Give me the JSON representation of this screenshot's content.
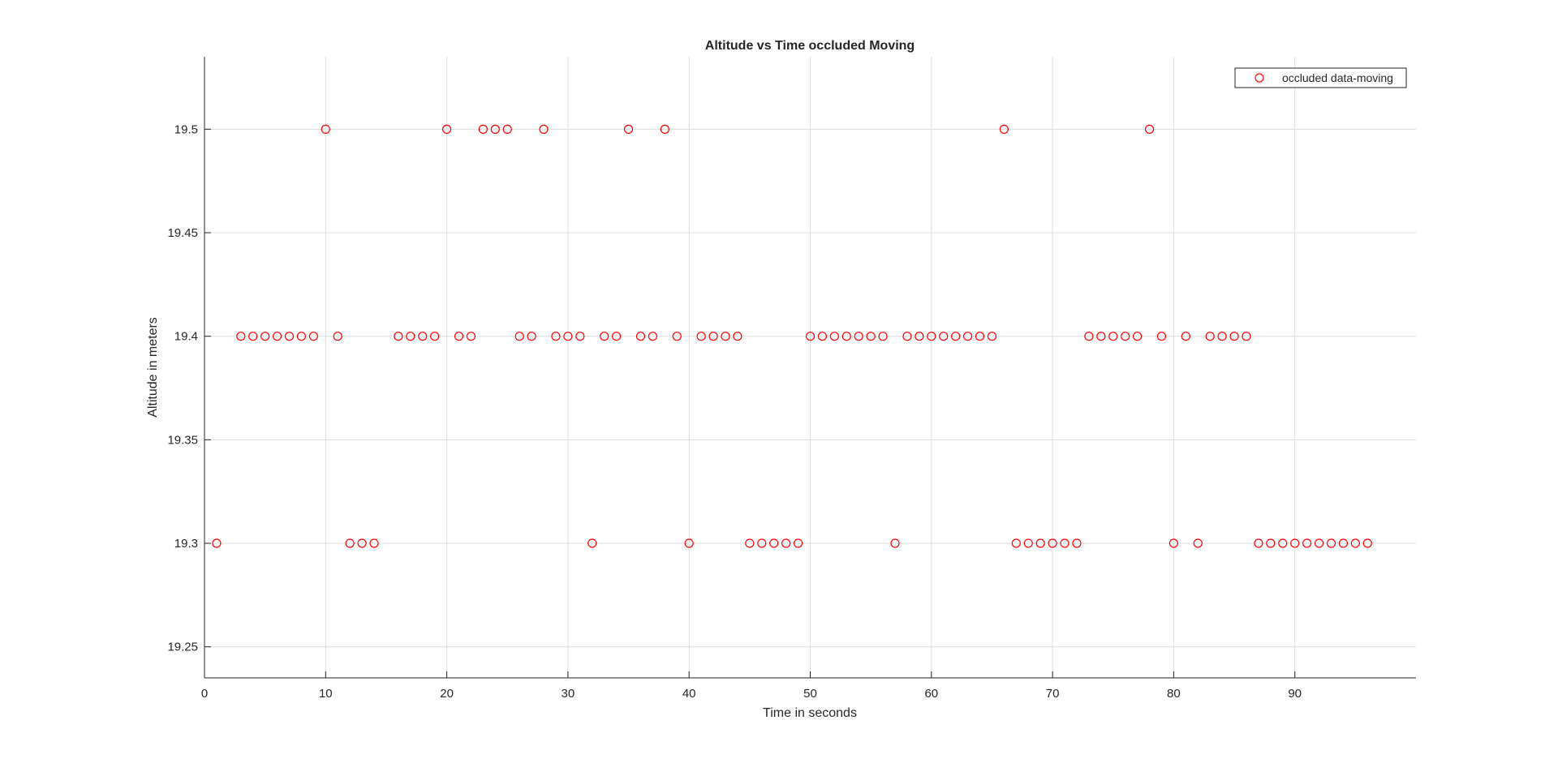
{
  "chart_data": {
    "type": "scatter",
    "title": "Altitude vs Time occluded Moving",
    "xlabel": "Time in seconds",
    "ylabel": "Altitude in meters",
    "xlim": [
      0,
      100
    ],
    "ylim": [
      19.235,
      19.535
    ],
    "x_ticks": [
      0,
      10,
      20,
      30,
      40,
      50,
      60,
      70,
      80,
      90
    ],
    "y_ticks": [
      19.25,
      19.3,
      19.35,
      19.4,
      19.45,
      19.5
    ],
    "x_tick_labels": [
      "0",
      "10",
      "20",
      "30",
      "40",
      "50",
      "60",
      "70",
      "80",
      "90"
    ],
    "y_tick_labels": [
      "19.25",
      "19.3",
      "19.35",
      "19.4",
      "19.45",
      "19.5"
    ],
    "grid": true,
    "legend_position": "top-right",
    "marker": "open-circle",
    "colors": {
      "marker": "#ff0000",
      "grid": "#dcdcdc",
      "axis": "#262626"
    },
    "series": [
      {
        "name": "occluded data-moving",
        "points": [
          [
            1,
            19.3
          ],
          [
            3,
            19.4
          ],
          [
            4,
            19.4
          ],
          [
            5,
            19.4
          ],
          [
            6,
            19.4
          ],
          [
            7,
            19.4
          ],
          [
            8,
            19.4
          ],
          [
            9,
            19.4
          ],
          [
            10,
            19.5
          ],
          [
            11,
            19.4
          ],
          [
            12,
            19.3
          ],
          [
            13,
            19.3
          ],
          [
            14,
            19.3
          ],
          [
            16,
            19.4
          ],
          [
            17,
            19.4
          ],
          [
            18,
            19.4
          ],
          [
            19,
            19.4
          ],
          [
            20,
            19.5
          ],
          [
            21,
            19.4
          ],
          [
            22,
            19.4
          ],
          [
            23,
            19.5
          ],
          [
            24,
            19.5
          ],
          [
            25,
            19.5
          ],
          [
            26,
            19.4
          ],
          [
            27,
            19.4
          ],
          [
            28,
            19.5
          ],
          [
            29,
            19.4
          ],
          [
            30,
            19.4
          ],
          [
            31,
            19.4
          ],
          [
            32,
            19.3
          ],
          [
            33,
            19.4
          ],
          [
            34,
            19.4
          ],
          [
            35,
            19.5
          ],
          [
            36,
            19.4
          ],
          [
            37,
            19.4
          ],
          [
            38,
            19.5
          ],
          [
            39,
            19.4
          ],
          [
            40,
            19.3
          ],
          [
            41,
            19.4
          ],
          [
            42,
            19.4
          ],
          [
            43,
            19.4
          ],
          [
            44,
            19.4
          ],
          [
            45,
            19.3
          ],
          [
            46,
            19.3
          ],
          [
            47,
            19.3
          ],
          [
            48,
            19.3
          ],
          [
            49,
            19.3
          ],
          [
            50,
            19.4
          ],
          [
            51,
            19.4
          ],
          [
            52,
            19.4
          ],
          [
            53,
            19.4
          ],
          [
            54,
            19.4
          ],
          [
            55,
            19.4
          ],
          [
            56,
            19.4
          ],
          [
            57,
            19.3
          ],
          [
            58,
            19.4
          ],
          [
            59,
            19.4
          ],
          [
            60,
            19.4
          ],
          [
            61,
            19.4
          ],
          [
            62,
            19.4
          ],
          [
            63,
            19.4
          ],
          [
            64,
            19.4
          ],
          [
            65,
            19.4
          ],
          [
            66,
            19.5
          ],
          [
            67,
            19.3
          ],
          [
            68,
            19.3
          ],
          [
            69,
            19.3
          ],
          [
            70,
            19.3
          ],
          [
            71,
            19.3
          ],
          [
            72,
            19.3
          ],
          [
            73,
            19.4
          ],
          [
            74,
            19.4
          ],
          [
            75,
            19.4
          ],
          [
            76,
            19.4
          ],
          [
            77,
            19.4
          ],
          [
            78,
            19.5
          ],
          [
            79,
            19.4
          ],
          [
            80,
            19.3
          ],
          [
            81,
            19.4
          ],
          [
            82,
            19.3
          ],
          [
            83,
            19.4
          ],
          [
            84,
            19.4
          ],
          [
            85,
            19.4
          ],
          [
            86,
            19.4
          ],
          [
            87,
            19.3
          ],
          [
            88,
            19.3
          ],
          [
            89,
            19.3
          ],
          [
            90,
            19.3
          ],
          [
            91,
            19.3
          ],
          [
            92,
            19.3
          ],
          [
            93,
            19.3
          ],
          [
            94,
            19.3
          ],
          [
            95,
            19.3
          ],
          [
            96,
            19.3
          ]
        ]
      }
    ]
  }
}
